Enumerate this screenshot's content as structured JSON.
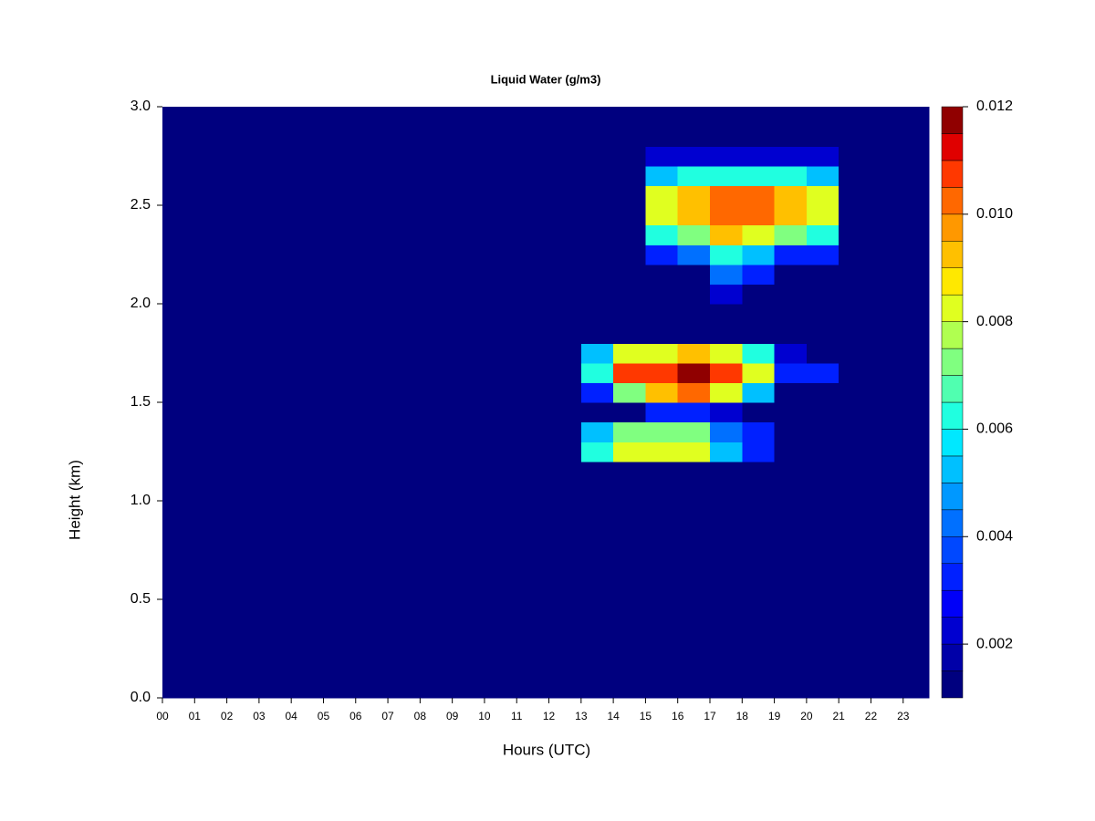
{
  "chart_data": {
    "type": "heatmap",
    "title": "Liquid Water (g/m3)",
    "x_label": "Hours (UTC)",
    "y_label": "Height (km)",
    "x_edges": [
      0,
      1,
      2,
      3,
      4,
      5,
      6,
      7,
      8,
      9,
      10,
      11,
      12,
      13,
      14,
      15,
      16,
      17,
      18,
      19,
      20,
      21,
      22,
      23,
      23.8
    ],
    "y_edges": [
      0,
      0.1,
      0.2,
      0.3,
      0.4,
      0.5,
      0.6,
      0.7,
      0.8,
      0.9,
      1,
      1.1,
      1.2,
      1.3,
      1.4,
      1.5,
      1.6,
      1.7,
      1.8,
      1.9,
      2,
      2.1,
      2.2,
      2.3,
      2.4,
      2.5,
      2.6,
      2.7,
      2.8,
      2.9,
      3
    ],
    "z": [
      [
        0.001,
        0.001,
        0.001,
        0.001,
        0.001,
        0.001,
        0.001,
        0.001,
        0.001,
        0.001,
        0.001,
        0.001,
        0.001,
        0.001,
        0.001,
        0.001,
        0.001,
        0.001,
        0.001,
        0.001,
        0.001,
        0.001,
        0.001,
        0.001
      ],
      [
        0.001,
        0.001,
        0.001,
        0.001,
        0.001,
        0.001,
        0.001,
        0.001,
        0.001,
        0.001,
        0.001,
        0.001,
        0.001,
        0.001,
        0.001,
        0.001,
        0.001,
        0.001,
        0.001,
        0.001,
        0.001,
        0.001,
        0.001,
        0.001
      ],
      [
        0.001,
        0.001,
        0.001,
        0.001,
        0.001,
        0.001,
        0.001,
        0.001,
        0.001,
        0.001,
        0.001,
        0.001,
        0.001,
        0.001,
        0.001,
        0.001,
        0.001,
        0.001,
        0.001,
        0.001,
        0.001,
        0.001,
        0.001,
        0.001
      ],
      [
        0.001,
        0.001,
        0.001,
        0.001,
        0.001,
        0.001,
        0.001,
        0.001,
        0.001,
        0.001,
        0.001,
        0.001,
        0.001,
        0.001,
        0.001,
        0.001,
        0.001,
        0.001,
        0.001,
        0.001,
        0.001,
        0.001,
        0.001,
        0.001
      ],
      [
        0.001,
        0.001,
        0.001,
        0.001,
        0.001,
        0.001,
        0.001,
        0.001,
        0.001,
        0.001,
        0.001,
        0.001,
        0.001,
        0.001,
        0.001,
        0.001,
        0.001,
        0.001,
        0.001,
        0.001,
        0.001,
        0.001,
        0.001,
        0.001
      ],
      [
        0.001,
        0.001,
        0.001,
        0.001,
        0.001,
        0.001,
        0.001,
        0.001,
        0.001,
        0.001,
        0.001,
        0.001,
        0.001,
        0.001,
        0.001,
        0.001,
        0.001,
        0.001,
        0.001,
        0.001,
        0.001,
        0.001,
        0.001,
        0.001
      ],
      [
        0.001,
        0.001,
        0.001,
        0.001,
        0.001,
        0.001,
        0.001,
        0.001,
        0.001,
        0.001,
        0.001,
        0.001,
        0.001,
        0.001,
        0.001,
        0.001,
        0.001,
        0.001,
        0.001,
        0.001,
        0.001,
        0.001,
        0.001,
        0.001
      ],
      [
        0.001,
        0.001,
        0.001,
        0.001,
        0.001,
        0.001,
        0.001,
        0.001,
        0.001,
        0.001,
        0.001,
        0.001,
        0.001,
        0.001,
        0.001,
        0.001,
        0.001,
        0.001,
        0.001,
        0.001,
        0.001,
        0.001,
        0.001,
        0.001
      ],
      [
        0.001,
        0.001,
        0.001,
        0.001,
        0.001,
        0.001,
        0.001,
        0.001,
        0.001,
        0.001,
        0.001,
        0.001,
        0.001,
        0.001,
        0.001,
        0.001,
        0.001,
        0.001,
        0.001,
        0.001,
        0.001,
        0.001,
        0.001,
        0.001
      ],
      [
        0.001,
        0.001,
        0.001,
        0.001,
        0.001,
        0.001,
        0.001,
        0.001,
        0.001,
        0.001,
        0.001,
        0.001,
        0.001,
        0.001,
        0.001,
        0.001,
        0.001,
        0.001,
        0.001,
        0.001,
        0.001,
        0.001,
        0.001,
        0.001
      ],
      [
        0.001,
        0.001,
        0.001,
        0.001,
        0.001,
        0.001,
        0.001,
        0.001,
        0.001,
        0.001,
        0.001,
        0.001,
        0.001,
        0.001,
        0.001,
        0.001,
        0.001,
        0.001,
        0.001,
        0.001,
        0.001,
        0.001,
        0.001,
        0.001
      ],
      [
        0.001,
        0.001,
        0.001,
        0.001,
        0.001,
        0.001,
        0.001,
        0.001,
        0.001,
        0.001,
        0.001,
        0.001,
        0.001,
        0.001,
        0.001,
        0.001,
        0.001,
        0.001,
        0.001,
        0.001,
        0.001,
        0.001,
        0.001,
        0.001
      ],
      [
        0.001,
        0.001,
        0.001,
        0.001,
        0.001,
        0.001,
        0.001,
        0.001,
        0.001,
        0.001,
        0.001,
        0.001,
        0.001,
        0.006,
        0.008,
        0.008,
        0.008,
        0.005,
        0.003,
        0.001,
        0.001,
        0.001,
        0.001,
        0.001
      ],
      [
        0.001,
        0.001,
        0.001,
        0.001,
        0.001,
        0.001,
        0.001,
        0.001,
        0.001,
        0.001,
        0.001,
        0.001,
        0.001,
        0.005,
        0.007,
        0.007,
        0.007,
        0.004,
        0.003,
        0.001,
        0.001,
        0.001,
        0.001,
        0.001
      ],
      [
        0.001,
        0.001,
        0.001,
        0.001,
        0.001,
        0.001,
        0.001,
        0.001,
        0.001,
        0.001,
        0.001,
        0.001,
        0.001,
        0.001,
        0.001,
        0.003,
        0.003,
        0.002,
        0.001,
        0.001,
        0.001,
        0.001,
        0.001,
        0.001
      ],
      [
        0.001,
        0.001,
        0.001,
        0.001,
        0.001,
        0.001,
        0.001,
        0.001,
        0.001,
        0.001,
        0.001,
        0.001,
        0.001,
        0.003,
        0.007,
        0.009,
        0.01,
        0.008,
        0.005,
        0.001,
        0.001,
        0.001,
        0.001,
        0.001
      ],
      [
        0.001,
        0.001,
        0.001,
        0.001,
        0.001,
        0.001,
        0.001,
        0.001,
        0.001,
        0.001,
        0.001,
        0.001,
        0.001,
        0.006,
        0.011,
        0.011,
        0.012,
        0.011,
        0.008,
        0.003,
        0.003,
        0.001,
        0.001,
        0.001
      ],
      [
        0.001,
        0.001,
        0.001,
        0.001,
        0.001,
        0.001,
        0.001,
        0.001,
        0.001,
        0.001,
        0.001,
        0.001,
        0.001,
        0.005,
        0.008,
        0.008,
        0.009,
        0.008,
        0.006,
        0.002,
        0.001,
        0.001,
        0.001,
        0.001
      ],
      [
        0.001,
        0.001,
        0.001,
        0.001,
        0.001,
        0.001,
        0.001,
        0.001,
        0.001,
        0.001,
        0.001,
        0.001,
        0.001,
        0.001,
        0.001,
        0.001,
        0.001,
        0.001,
        0.001,
        0.001,
        0.001,
        0.001,
        0.001,
        0.001
      ],
      [
        0.001,
        0.001,
        0.001,
        0.001,
        0.001,
        0.001,
        0.001,
        0.001,
        0.001,
        0.001,
        0.001,
        0.001,
        0.001,
        0.001,
        0.001,
        0.001,
        0.001,
        0.001,
        0.001,
        0.001,
        0.001,
        0.001,
        0.001,
        0.001
      ],
      [
        0.001,
        0.001,
        0.001,
        0.001,
        0.001,
        0.001,
        0.001,
        0.001,
        0.001,
        0.001,
        0.001,
        0.001,
        0.001,
        0.001,
        0.001,
        0.001,
        0.001,
        0.002,
        0.001,
        0.001,
        0.001,
        0.001,
        0.001,
        0.001
      ],
      [
        0.001,
        0.001,
        0.001,
        0.001,
        0.001,
        0.001,
        0.001,
        0.001,
        0.001,
        0.001,
        0.001,
        0.001,
        0.001,
        0.001,
        0.001,
        0.001,
        0.001,
        0.004,
        0.003,
        0.001,
        0.001,
        0.001,
        0.001,
        0.001
      ],
      [
        0.001,
        0.001,
        0.001,
        0.001,
        0.001,
        0.001,
        0.001,
        0.001,
        0.001,
        0.001,
        0.001,
        0.001,
        0.001,
        0.001,
        0.001,
        0.003,
        0.004,
        0.006,
        0.005,
        0.003,
        0.003,
        0.001,
        0.001,
        0.001
      ],
      [
        0.001,
        0.001,
        0.001,
        0.001,
        0.001,
        0.001,
        0.001,
        0.001,
        0.001,
        0.001,
        0.001,
        0.001,
        0.001,
        0.001,
        0.001,
        0.006,
        0.007,
        0.009,
        0.008,
        0.007,
        0.006,
        0.001,
        0.001,
        0.001
      ],
      [
        0.001,
        0.001,
        0.001,
        0.001,
        0.001,
        0.001,
        0.001,
        0.001,
        0.001,
        0.001,
        0.001,
        0.001,
        0.001,
        0.001,
        0.001,
        0.008,
        0.009,
        0.01,
        0.01,
        0.009,
        0.008,
        0.001,
        0.001,
        0.001
      ],
      [
        0.001,
        0.001,
        0.001,
        0.001,
        0.001,
        0.001,
        0.001,
        0.001,
        0.001,
        0.001,
        0.001,
        0.001,
        0.001,
        0.001,
        0.001,
        0.008,
        0.009,
        0.01,
        0.01,
        0.009,
        0.008,
        0.001,
        0.001,
        0.001
      ],
      [
        0.001,
        0.001,
        0.001,
        0.001,
        0.001,
        0.001,
        0.001,
        0.001,
        0.001,
        0.001,
        0.001,
        0.001,
        0.001,
        0.001,
        0.001,
        0.005,
        0.006,
        0.006,
        0.006,
        0.006,
        0.005,
        0.001,
        0.001,
        0.001
      ],
      [
        0.001,
        0.001,
        0.001,
        0.001,
        0.001,
        0.001,
        0.001,
        0.001,
        0.001,
        0.001,
        0.001,
        0.001,
        0.001,
        0.001,
        0.001,
        0.002,
        0.002,
        0.002,
        0.002,
        0.002,
        0.002,
        0.001,
        0.001,
        0.001
      ],
      [
        0.001,
        0.001,
        0.001,
        0.001,
        0.001,
        0.001,
        0.001,
        0.001,
        0.001,
        0.001,
        0.001,
        0.001,
        0.001,
        0.001,
        0.001,
        0.001,
        0.001,
        0.001,
        0.001,
        0.001,
        0.001,
        0.001,
        0.001,
        0.001
      ],
      [
        0.001,
        0.001,
        0.001,
        0.001,
        0.001,
        0.001,
        0.001,
        0.001,
        0.001,
        0.001,
        0.001,
        0.001,
        0.001,
        0.001,
        0.001,
        0.001,
        0.001,
        0.001,
        0.001,
        0.001,
        0.001,
        0.001,
        0.001,
        0.001
      ]
    ],
    "xlim": [
      0,
      23.8
    ],
    "ylim": [
      0,
      3
    ],
    "xticks": [
      {
        "value": 0,
        "label": "00"
      },
      {
        "value": 1,
        "label": "01"
      },
      {
        "value": 2,
        "label": "02"
      },
      {
        "value": 3,
        "label": "03"
      },
      {
        "value": 4,
        "label": "04"
      },
      {
        "value": 5,
        "label": "05"
      },
      {
        "value": 6,
        "label": "06"
      },
      {
        "value": 7,
        "label": "07"
      },
      {
        "value": 8,
        "label": "08"
      },
      {
        "value": 9,
        "label": "09"
      },
      {
        "value": 10,
        "label": "10"
      },
      {
        "value": 11,
        "label": "11"
      },
      {
        "value": 12,
        "label": "12"
      },
      {
        "value": 13,
        "label": "13"
      },
      {
        "value": 14,
        "label": "14"
      },
      {
        "value": 15,
        "label": "15"
      },
      {
        "value": 16,
        "label": "16"
      },
      {
        "value": 17,
        "label": "17"
      },
      {
        "value": 18,
        "label": "18"
      },
      {
        "value": 19,
        "label": "19"
      },
      {
        "value": 20,
        "label": "20"
      },
      {
        "value": 21,
        "label": "21"
      },
      {
        "value": 22,
        "label": "22"
      },
      {
        "value": 23,
        "label": "23"
      }
    ],
    "yticks": [
      {
        "value": 0,
        "label": "0.0"
      },
      0.5,
      {
        "value": 1,
        "label": "1.0"
      },
      1.5,
      {
        "value": 2,
        "label": "2.0"
      },
      2.5,
      {
        "value": 3,
        "label": "3.0"
      }
    ],
    "colorbar": {
      "levels": [
        0.001,
        0.0015,
        0.002,
        0.0025,
        0.003,
        0.0035,
        0.004,
        0.0045,
        0.005,
        0.0055,
        0.006,
        0.0065,
        0.007,
        0.0075,
        0.008,
        0.0085,
        0.009,
        0.0095,
        0.01,
        0.0105,
        0.011,
        0.0115,
        0.012
      ],
      "colors": [
        "#00007F",
        "#0000A8",
        "#0000D0",
        "#0000F8",
        "#0020FF",
        "#0048FF",
        "#0070FF",
        "#0098FF",
        "#00C0FF",
        "#00E8FF",
        "#20FFE0",
        "#50FFB0",
        "#80FF80",
        "#B0FF50",
        "#E0FF20",
        "#FFE800",
        "#FFC000",
        "#FF9800",
        "#FF6800",
        "#FF3800",
        "#E00000",
        "#900000"
      ],
      "ticks": [
        0.002,
        0.004,
        0.006,
        0.008,
        {
          "value": 0.01,
          "label": "0.010"
        },
        0.012
      ]
    }
  }
}
